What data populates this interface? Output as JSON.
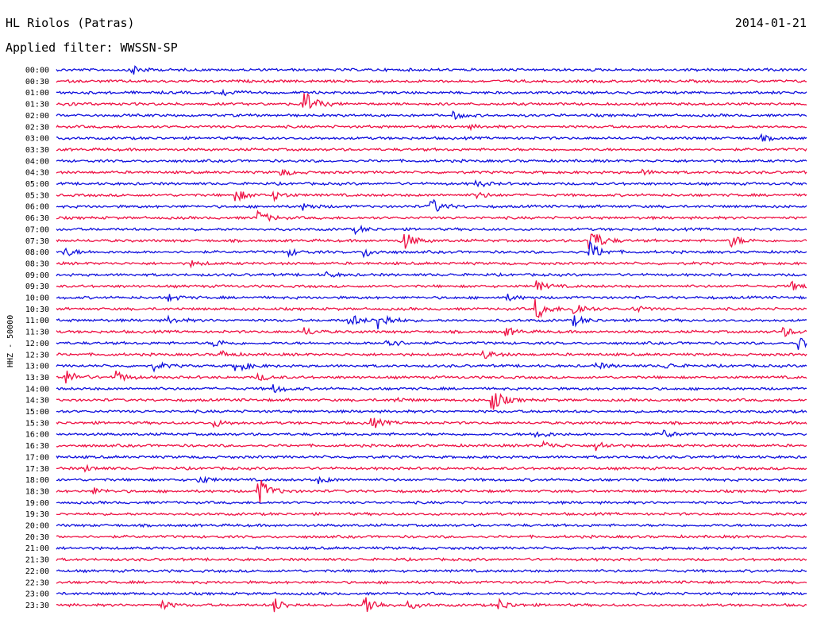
{
  "header": {
    "station": "HL Riolos (Patras)",
    "date": "2014-01-21",
    "filter_label": "Applied filter: WWSSN-SP"
  },
  "colors": {
    "even_row": "#1010dd",
    "odd_row": "#ee1144"
  },
  "chart_data": {
    "type": "line",
    "title": "HL Riolos (Patras)",
    "channel_label": "HHZ - 50000",
    "row_labels": [
      "00:00",
      "00:30",
      "01:00",
      "01:30",
      "02:00",
      "02:30",
      "03:00",
      "03:30",
      "04:00",
      "04:30",
      "05:00",
      "05:30",
      "06:00",
      "06:30",
      "07:00",
      "07:30",
      "08:00",
      "08:30",
      "09:00",
      "09:30",
      "10:00",
      "10:30",
      "11:00",
      "11:30",
      "12:00",
      "12:30",
      "13:00",
      "13:30",
      "14:00",
      "14:30",
      "15:00",
      "15:30",
      "16:00",
      "16:30",
      "17:00",
      "17:30",
      "18:00",
      "18:30",
      "19:00",
      "19:30",
      "20:00",
      "20:30",
      "21:00",
      "21:30",
      "22:00",
      "22:30",
      "23:00",
      "23:30"
    ],
    "events": [
      [
        0,
        0.1,
        7
      ],
      [
        2,
        0.22,
        5
      ],
      [
        3,
        0.33,
        18
      ],
      [
        3,
        0.01,
        3
      ],
      [
        4,
        0.53,
        4
      ],
      [
        5,
        0.55,
        2
      ],
      [
        6,
        0.94,
        3
      ],
      [
        9,
        0.3,
        4
      ],
      [
        9,
        0.78,
        3
      ],
      [
        10,
        0.56,
        4
      ],
      [
        11,
        0.24,
        7
      ],
      [
        11,
        0.29,
        5
      ],
      [
        11,
        0.56,
        4
      ],
      [
        12,
        0.5,
        10
      ],
      [
        12,
        0.33,
        4
      ],
      [
        13,
        0.27,
        8
      ],
      [
        14,
        0.4,
        4
      ],
      [
        15,
        0.46,
        14
      ],
      [
        15,
        0.71,
        20
      ],
      [
        15,
        0.9,
        7
      ],
      [
        16,
        0.01,
        6
      ],
      [
        16,
        0.41,
        6
      ],
      [
        16,
        0.31,
        4
      ],
      [
        16,
        0.71,
        13
      ],
      [
        17,
        0.18,
        3
      ],
      [
        18,
        0.36,
        3
      ],
      [
        19,
        0.64,
        6
      ],
      [
        19,
        0.98,
        5
      ],
      [
        20,
        0.15,
        4
      ],
      [
        20,
        0.6,
        4
      ],
      [
        21,
        0.64,
        13
      ],
      [
        21,
        0.69,
        10
      ],
      [
        21,
        0.77,
        4
      ],
      [
        22,
        0.15,
        4
      ],
      [
        22,
        0.39,
        9
      ],
      [
        22,
        0.43,
        12
      ],
      [
        22,
        0.69,
        6
      ],
      [
        23,
        0.33,
        5
      ],
      [
        23,
        0.6,
        5
      ],
      [
        23,
        0.97,
        5
      ],
      [
        24,
        0.21,
        5
      ],
      [
        24,
        0.44,
        7
      ],
      [
        24,
        0.99,
        9
      ],
      [
        25,
        0.22,
        4
      ],
      [
        25,
        0.57,
        5
      ],
      [
        26,
        0.13,
        5
      ],
      [
        26,
        0.24,
        8
      ],
      [
        26,
        0.72,
        4
      ],
      [
        26,
        0.81,
        4
      ],
      [
        27,
        0.01,
        11
      ],
      [
        27,
        0.08,
        7
      ],
      [
        27,
        0.27,
        4
      ],
      [
        28,
        0.29,
        5
      ],
      [
        29,
        0.58,
        16
      ],
      [
        29,
        0.45,
        3
      ],
      [
        31,
        0.21,
        5
      ],
      [
        31,
        0.42,
        7
      ],
      [
        32,
        0.64,
        5
      ],
      [
        32,
        0.81,
        5
      ],
      [
        33,
        0.65,
        5
      ],
      [
        33,
        0.72,
        6
      ],
      [
        35,
        0.04,
        3
      ],
      [
        36,
        0.19,
        5
      ],
      [
        36,
        0.35,
        4
      ],
      [
        37,
        0.05,
        4
      ],
      [
        37,
        0.27,
        17
      ],
      [
        47,
        0.29,
        9
      ],
      [
        47,
        0.41,
        16
      ],
      [
        47,
        0.14,
        5
      ],
      [
        47,
        0.47,
        4
      ],
      [
        47,
        0.59,
        7
      ]
    ]
  }
}
